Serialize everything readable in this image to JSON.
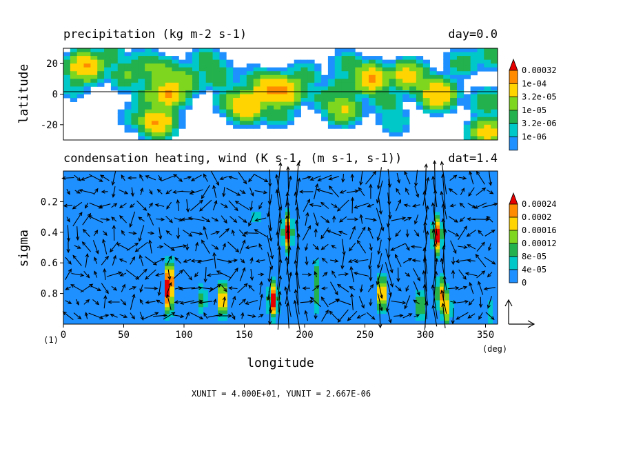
{
  "chart_data": [
    {
      "type": "heatmap",
      "title": "precipitation (kg m-2 s-1)",
      "time_label": "day=0.0",
      "ylabel": "latitude",
      "xlim": [
        0,
        360
      ],
      "ylim": [
        -30,
        30
      ],
      "y_ticks": [
        20,
        0,
        -20
      ],
      "y_tick_labels": [
        "20",
        "0",
        "-20"
      ],
      "reference_line": 0,
      "levels": [
        1e-06,
        3.2e-06,
        1e-05,
        3.2e-05,
        0.0001,
        0.00032
      ],
      "level_labels": [
        "1e-06",
        "3.2e-06",
        "1e-05",
        "3.2e-05",
        "1e-04",
        "0.00032"
      ],
      "level_colors": [
        "#ffffff",
        "#1e90ff",
        "#00c8c8",
        "#22b14c",
        "#7fd61e",
        "#ffd400",
        "#ff8c00",
        "#e60000"
      ],
      "hotspots": [
        {
          "lon": 18,
          "lat": 18,
          "val": 0.00035
        },
        {
          "lon": 8,
          "lat": 5,
          "val": 1e-05
        },
        {
          "lon": 38,
          "lat": 25,
          "val": 2e-05
        },
        {
          "lon": 52,
          "lat": 12,
          "val": 4e-05
        },
        {
          "lon": 68,
          "lat": 20,
          "val": 3e-05
        },
        {
          "lon": 72,
          "lat": -2,
          "val": 3e-05
        },
        {
          "lon": 58,
          "lat": -15,
          "val": 1e-05
        },
        {
          "lon": 82,
          "lat": 14,
          "val": 8e-05
        },
        {
          "lon": 87,
          "lat": 0,
          "val": 0.00035
        },
        {
          "lon": 78,
          "lat": -18,
          "val": 0.00035
        },
        {
          "lon": 100,
          "lat": 8,
          "val": 8e-05
        },
        {
          "lon": 118,
          "lat": 22,
          "val": 2e-05
        },
        {
          "lon": 128,
          "lat": 12,
          "val": 3e-05
        },
        {
          "lon": 140,
          "lat": -4,
          "val": 4e-05
        },
        {
          "lon": 152,
          "lat": -8,
          "val": 0.00035
        },
        {
          "lon": 158,
          "lat": 10,
          "val": 1e-05
        },
        {
          "lon": 170,
          "lat": 3,
          "val": 0.00035
        },
        {
          "lon": 184,
          "lat": 2,
          "val": 0.00035
        },
        {
          "lon": 178,
          "lat": -12,
          "val": 3e-05
        },
        {
          "lon": 200,
          "lat": 12,
          "val": 2e-05
        },
        {
          "lon": 218,
          "lat": -3,
          "val": 2e-05
        },
        {
          "lon": 232,
          "lat": -10,
          "val": 0.00012
        },
        {
          "lon": 232,
          "lat": 5,
          "val": 2e-05
        },
        {
          "lon": 236,
          "lat": 20,
          "val": 2e-05
        },
        {
          "lon": 255,
          "lat": 10,
          "val": 0.00035
        },
        {
          "lon": 268,
          "lat": -5,
          "val": 2e-05
        },
        {
          "lon": 285,
          "lat": 12,
          "val": 0.0002
        },
        {
          "lon": 295,
          "lat": 10,
          "val": 3e-05
        },
        {
          "lon": 275,
          "lat": -18,
          "val": 1e-05
        },
        {
          "lon": 310,
          "lat": 0,
          "val": 0.00035
        },
        {
          "lon": 330,
          "lat": 20,
          "val": 2e-05
        },
        {
          "lon": 350,
          "lat": -5,
          "val": 3e-05
        },
        {
          "lon": 352,
          "lat": -25,
          "val": 0.0002
        },
        {
          "lon": 355,
          "lat": 26,
          "val": 2e-05
        }
      ]
    },
    {
      "type": "heatmap",
      "title": "condensation heating, wind (K s-1, (m s-1, s-1))",
      "time_label": "dat=1.4",
      "xlabel": "longitude",
      "ylabel": "sigma",
      "xlim": [
        0,
        360
      ],
      "ylim": [
        1.0,
        0.0
      ],
      "x_ticks": [
        0,
        50,
        100,
        150,
        200,
        250,
        300,
        350
      ],
      "x_tick_labels": [
        "0",
        "50",
        "100",
        "150",
        "200",
        "250",
        "300",
        "350"
      ],
      "x_unit": "(deg)",
      "y_ticks": [
        0.2,
        0.4,
        0.6,
        0.8
      ],
      "y_tick_labels": [
        "0.2",
        "0.4",
        "0.6",
        "0.8"
      ],
      "levels": [
        0,
        4e-05,
        8e-05,
        0.00012,
        0.00016,
        0.0002,
        0.00024
      ],
      "level_labels": [
        "0",
        "4e-05",
        "8e-05",
        "0.00012",
        "0.00016",
        "0.0002",
        "0.00024"
      ],
      "level_colors": [
        "#1e5fdc",
        "#1e90ff",
        "#00c8c8",
        "#22b14c",
        "#7fd61e",
        "#ffd400",
        "#ff8c00",
        "#e60000"
      ],
      "hotspots": [
        {
          "lon": 88,
          "sig": 0.7,
          "val": 0.00026
        },
        {
          "lon": 87,
          "sig": 0.84,
          "val": 0.0002
        },
        {
          "lon": 115,
          "sig": 0.84,
          "val": 0.0001
        },
        {
          "lon": 132,
          "sig": 0.84,
          "val": 0.00026
        },
        {
          "lon": 160,
          "sig": 0.3,
          "val": 6e-05
        },
        {
          "lon": 174,
          "sig": 0.84,
          "val": 0.00028
        },
        {
          "lon": 186,
          "sig": 0.4,
          "val": 0.0003
        },
        {
          "lon": 210,
          "sig": 0.68,
          "val": 0.0001
        },
        {
          "lon": 210,
          "sig": 0.84,
          "val": 8e-05
        },
        {
          "lon": 264,
          "sig": 0.8,
          "val": 0.00026
        },
        {
          "lon": 310,
          "sig": 0.42,
          "val": 0.0003
        },
        {
          "lon": 313,
          "sig": 0.8,
          "val": 0.0002
        },
        {
          "lon": 318,
          "sig": 0.9,
          "val": 0.00018
        },
        {
          "lon": 296,
          "sig": 0.88,
          "val": 0.00014
        },
        {
          "lon": 354,
          "sig": 0.93,
          "val": 8e-05
        }
      ],
      "vector_reference": {
        "xunit": "4.000E+01",
        "yunit": "2.667E-06"
      }
    }
  ],
  "frame_label": "(1)",
  "footer": "XUNIT = 4.000E+01, YUNIT = 2.667E-06"
}
